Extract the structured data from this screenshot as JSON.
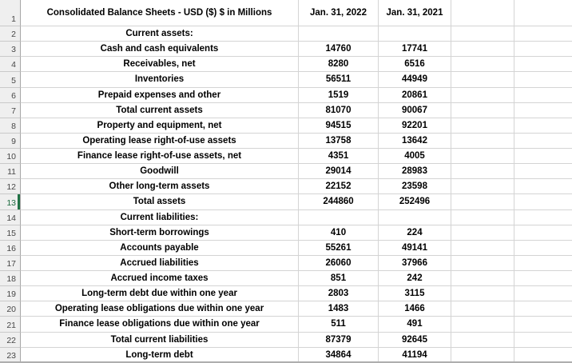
{
  "colors": {
    "selection_green": "#217346",
    "grid_line": "#d4d4d4",
    "row_header_bg": "#efefef",
    "row_header_text": "#474747",
    "cell_text": "#000000",
    "bottom_edge_line": "#aeaeae"
  },
  "sheet": {
    "header": {
      "row_number": "1",
      "title": "Consolidated Balance Sheets - USD ($) $ in Millions",
      "col_2022": "Jan. 31, 2022",
      "col_2021": "Jan. 31, 2021"
    },
    "selected_row_number": 13,
    "rows": [
      {
        "n": "2",
        "label": "Current assets:",
        "v2022": "",
        "v2021": ""
      },
      {
        "n": "3",
        "label": "Cash and cash equivalents",
        "v2022": "14760",
        "v2021": "17741"
      },
      {
        "n": "4",
        "label": "Receivables, net",
        "v2022": "8280",
        "v2021": "6516"
      },
      {
        "n": "5",
        "label": "Inventories",
        "v2022": "56511",
        "v2021": "44949"
      },
      {
        "n": "6",
        "label": "Prepaid expenses and other",
        "v2022": "1519",
        "v2021": "20861"
      },
      {
        "n": "7",
        "label": "Total current assets",
        "v2022": "81070",
        "v2021": "90067"
      },
      {
        "n": "8",
        "label": "Property and equipment, net",
        "v2022": "94515",
        "v2021": "92201"
      },
      {
        "n": "9",
        "label": "Operating lease right-of-use assets",
        "v2022": "13758",
        "v2021": "13642"
      },
      {
        "n": "10",
        "label": "Finance lease right-of-use assets, net",
        "v2022": "4351",
        "v2021": "4005"
      },
      {
        "n": "11",
        "label": "Goodwill",
        "v2022": "29014",
        "v2021": "28983"
      },
      {
        "n": "12",
        "label": "Other long-term assets",
        "v2022": "22152",
        "v2021": "23598"
      },
      {
        "n": "13",
        "label": "Total assets",
        "v2022": "244860",
        "v2021": "252496"
      },
      {
        "n": "14",
        "label": "Current liabilities:",
        "v2022": "",
        "v2021": ""
      },
      {
        "n": "15",
        "label": "Short-term borrowings",
        "v2022": "410",
        "v2021": "224"
      },
      {
        "n": "16",
        "label": "Accounts payable",
        "v2022": "55261",
        "v2021": "49141"
      },
      {
        "n": "17",
        "label": "Accrued liabilities",
        "v2022": "26060",
        "v2021": "37966"
      },
      {
        "n": "18",
        "label": "Accrued income taxes",
        "v2022": "851",
        "v2021": "242"
      },
      {
        "n": "19",
        "label": "Long-term debt due within one year",
        "v2022": "2803",
        "v2021": "3115"
      },
      {
        "n": "20",
        "label": "Operating lease obligations due within one year",
        "v2022": "1483",
        "v2021": "1466"
      },
      {
        "n": "21",
        "label": "Finance lease obligations due within one year",
        "v2022": "511",
        "v2021": "491"
      },
      {
        "n": "22",
        "label": "Total current liabilities",
        "v2022": "87379",
        "v2021": "92645"
      },
      {
        "n": "23",
        "label": "Long-term debt",
        "v2022": "34864",
        "v2021": "41194"
      }
    ]
  }
}
